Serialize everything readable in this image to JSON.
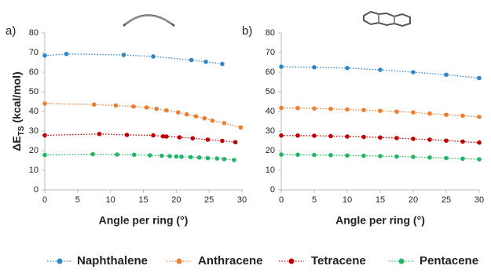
{
  "chart_data": [
    {
      "type": "line",
      "panel_label": "a)",
      "x_label": "Angle per ring (°)",
      "y_label": [
        "ΔE",
        "TS",
        " (kcal/mol)"
      ],
      "xlim": [
        0,
        30
      ],
      "xticks": [
        0,
        5,
        10,
        15,
        20,
        25,
        30
      ],
      "ylim": [
        0,
        80
      ],
      "yticks": [
        0,
        10,
        20,
        30,
        40,
        50,
        60,
        70,
        80
      ],
      "series": [
        {
          "name": "Naphthalene",
          "color": "#2e86c8",
          "x": [
            0,
            3.3,
            12,
            16.5,
            22.3,
            24.5,
            27
          ],
          "values": [
            68.5,
            69.3,
            68.8,
            68,
            66.2,
            65.3,
            64.2
          ]
        },
        {
          "name": "Anthracene",
          "color": "#ed7d31",
          "x": [
            0,
            7.5,
            10.8,
            13.5,
            15.5,
            17,
            18.5,
            20.3,
            21.6,
            23,
            24.3,
            25.5,
            27.3,
            29.8
          ],
          "values": [
            44,
            43.5,
            43,
            42.5,
            42,
            41.3,
            40.5,
            39.5,
            38.5,
            37.5,
            36.5,
            35.3,
            34,
            31.8
          ]
        },
        {
          "name": "Tetracene",
          "color": "#c00000",
          "x": [
            0,
            8.3,
            12.5,
            16.5,
            18,
            18.5,
            20.5,
            22.5,
            24.8,
            27,
            29
          ],
          "values": [
            27.8,
            28.5,
            28,
            27.8,
            27.3,
            27.2,
            26.8,
            26.3,
            25.6,
            25,
            24.3
          ]
        },
        {
          "name": "Pentacene",
          "color": "#22b566",
          "x": [
            0,
            7.3,
            11,
            13.6,
            16,
            17.8,
            19,
            20,
            20.8,
            22.2,
            23.5,
            24.8,
            26.2,
            27.3,
            28.8
          ],
          "values": [
            17.8,
            18.2,
            18,
            17.9,
            17.6,
            17.4,
            17.2,
            17,
            16.9,
            16.7,
            16.5,
            16.2,
            16,
            15.7,
            15.2
          ]
        }
      ]
    },
    {
      "type": "line",
      "panel_label": "b)",
      "x_label": "Angle per ring (°)",
      "xlim": [
        0,
        30
      ],
      "xticks": [
        0,
        5,
        10,
        15,
        20,
        25,
        30
      ],
      "ylim": [
        0,
        80
      ],
      "yticks": [
        0,
        10,
        20,
        30,
        40,
        50,
        60,
        70,
        80
      ],
      "series": [
        {
          "color": "#2e86c8",
          "x": [
            0,
            5,
            10,
            15,
            20,
            25,
            30
          ],
          "values": [
            62.8,
            62.5,
            62.1,
            61.2,
            60,
            58.7,
            57
          ]
        },
        {
          "color": "#ed7d31",
          "x": [
            0,
            2.5,
            5,
            7.5,
            10,
            12.5,
            15,
            17.5,
            20,
            22.5,
            25,
            27.5,
            30
          ],
          "values": [
            41.8,
            41.7,
            41.5,
            41.3,
            41,
            40.7,
            40.3,
            39.9,
            39.5,
            38.9,
            38.3,
            37.8,
            37.2
          ]
        },
        {
          "color": "#c00000",
          "x": [
            0,
            2.5,
            5,
            7.5,
            10,
            12.5,
            15,
            17.5,
            20,
            22.5,
            25,
            27.5,
            30
          ],
          "values": [
            27.7,
            27.7,
            27.6,
            27.4,
            27.2,
            27,
            26.7,
            26.4,
            26,
            25.6,
            25.1,
            24.6,
            24.1
          ]
        },
        {
          "color": "#22b566",
          "x": [
            0,
            2.5,
            5,
            7.5,
            10,
            12.5,
            15,
            17.5,
            20,
            22.5,
            25,
            27.5,
            30
          ],
          "values": [
            18,
            17.9,
            17.8,
            17.7,
            17.5,
            17.4,
            17.2,
            17,
            16.8,
            16.5,
            16.2,
            15.9,
            15.6
          ]
        }
      ]
    }
  ]
}
